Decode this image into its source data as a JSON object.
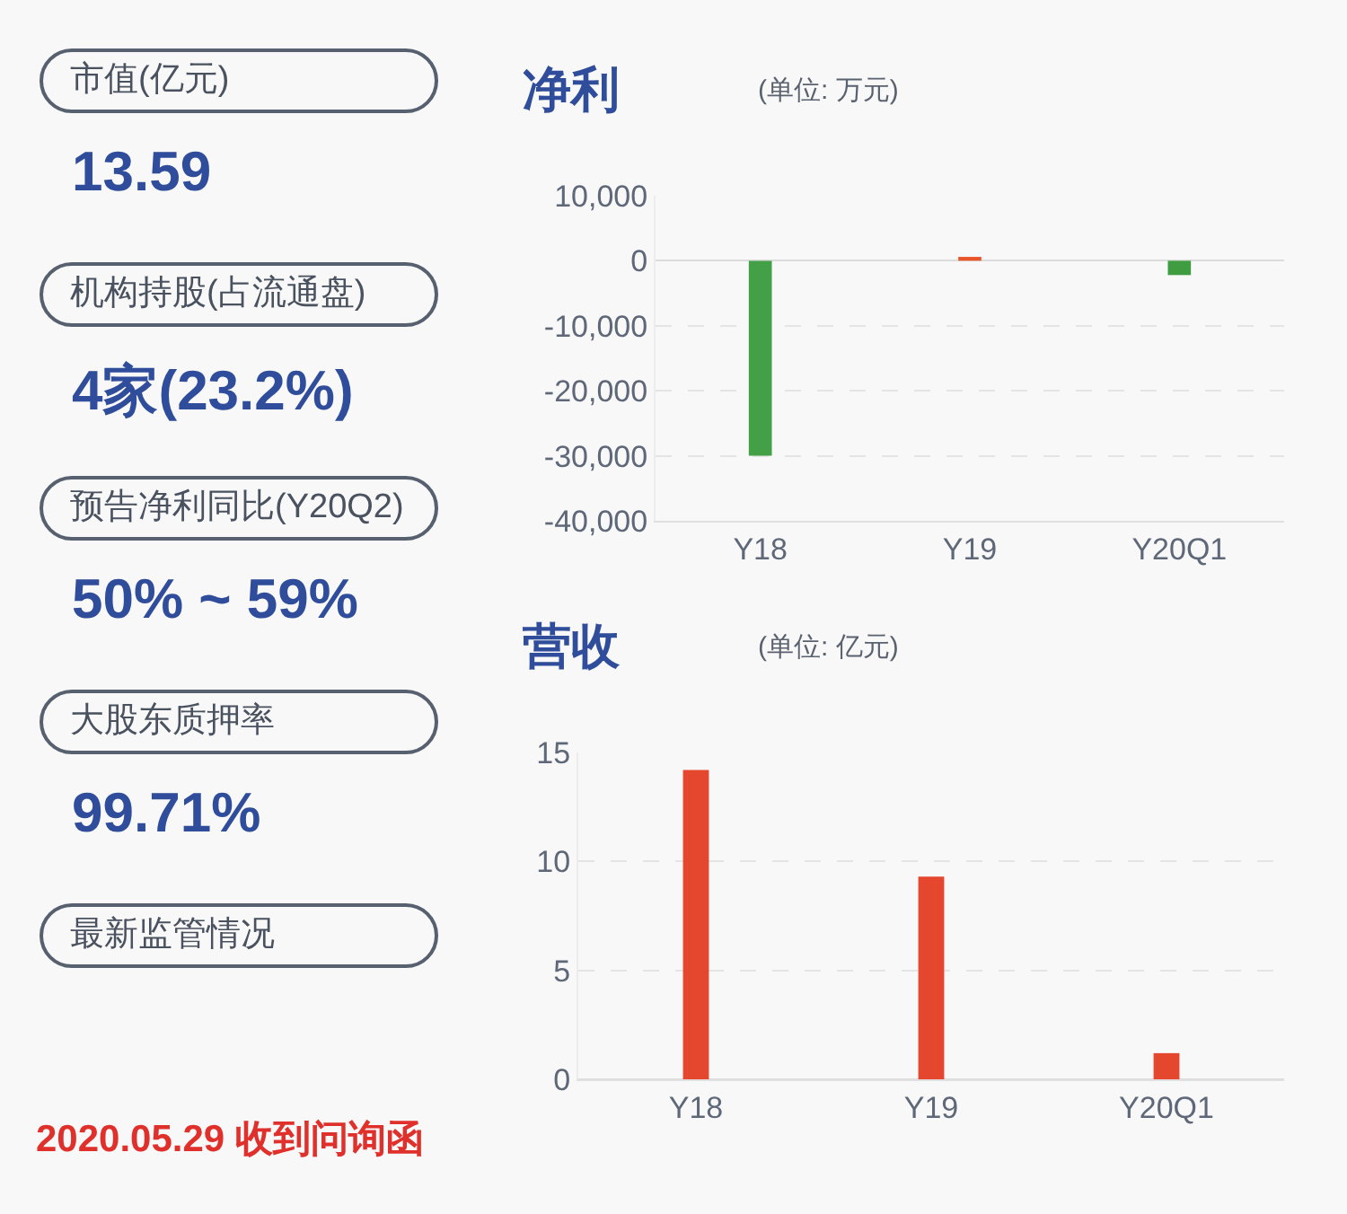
{
  "chart_data": [
    {
      "type": "other",
      "annotations": [
        "市值(亿元)",
        "13.59",
        "机构持股(占流通盘)",
        "4家(23.2%)",
        "预告净利同比(Y20Q2)",
        "50% ~ 59%",
        "大股东质押率",
        "99.71%",
        "最新监管情况",
        "2020.05.29 收到问询函"
      ]
    },
    {
      "type": "bar",
      "title": "净利",
      "subtitle": "(单位: 万元)",
      "categories": [
        "Y18",
        "Y19",
        "Y20Q1"
      ],
      "values": [
        -30000,
        600,
        -2200
      ],
      "colors": [
        "#43a047",
        "#e8552a",
        "#3f9c40"
      ],
      "ylim": [
        -40000,
        10000
      ],
      "yticks": [
        {
          "value": 10000,
          "label": "10,000"
        },
        0,
        {
          "value": -10000,
          "label": "-10,000"
        },
        {
          "value": -20000,
          "label": "-20,000"
        },
        {
          "value": -30000,
          "label": "-30,000"
        },
        {
          "value": -40000,
          "label": "-40,000"
        }
      ],
      "grid": "y"
    },
    {
      "type": "bar",
      "title": "营收",
      "subtitle": "(单位: 亿元)",
      "categories": [
        "Y18",
        "Y19",
        "Y20Q1"
      ],
      "values": [
        14.2,
        9.3,
        1.2
      ],
      "color": "#e4472d",
      "ylim": [
        0,
        15
      ],
      "yticks": [
        0,
        5,
        10,
        15
      ],
      "grid": "y"
    }
  ]
}
